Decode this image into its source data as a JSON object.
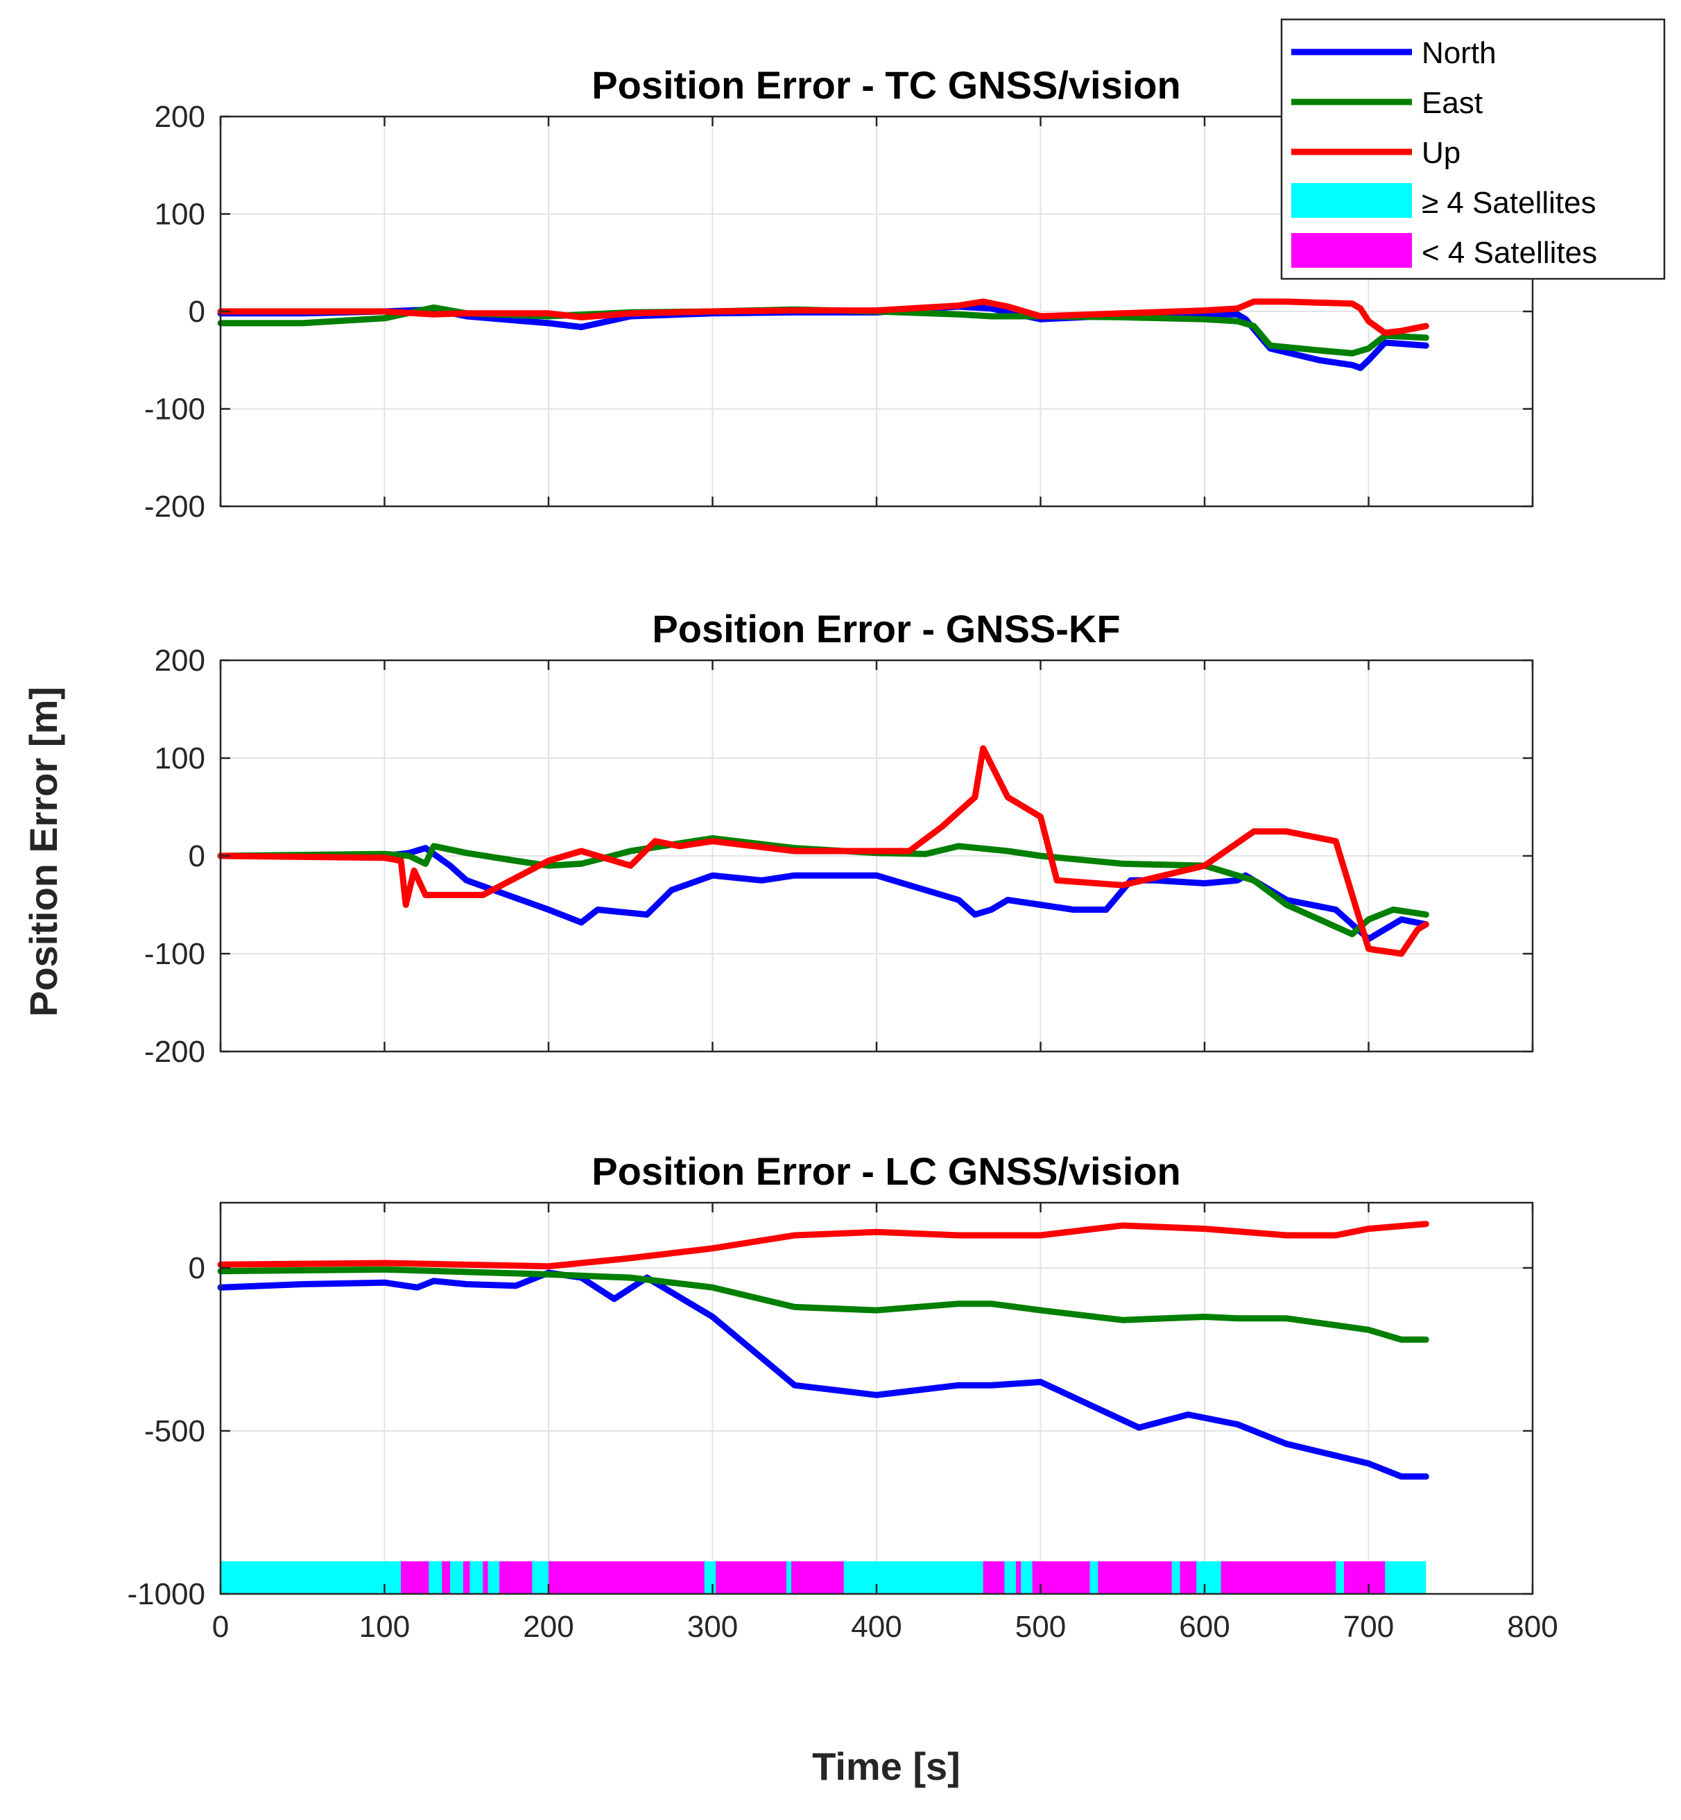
{
  "chart_data": [
    {
      "type": "line",
      "title": "Position Error - TC GNSS/vision",
      "xlim": [
        0,
        800
      ],
      "ylim": [
        -200,
        200
      ],
      "yticks": [
        200,
        100,
        0,
        -100,
        -200
      ],
      "yticklabels": [
        "200",
        "100",
        "0",
        "-100",
        "-200"
      ],
      "xticks": [
        0,
        100,
        200,
        300,
        400,
        500,
        600,
        700,
        800
      ],
      "show_xticklabels": false,
      "grid": true,
      "series": [
        {
          "name": "North",
          "color": "#0000ff",
          "x": [
            0,
            50,
            100,
            130,
            150,
            200,
            220,
            250,
            300,
            350,
            400,
            450,
            470,
            500,
            550,
            600,
            620,
            625,
            640,
            670,
            690,
            695,
            700,
            710,
            735
          ],
          "y": [
            -2,
            -2,
            0,
            2,
            -5,
            -12,
            -16,
            -5,
            -2,
            -1,
            -1,
            5,
            3,
            -8,
            -4,
            -3,
            -3,
            -8,
            -38,
            -50,
            -55,
            -58,
            -50,
            -32,
            -35
          ]
        },
        {
          "name": "East",
          "color": "#007f00",
          "x": [
            0,
            50,
            100,
            130,
            150,
            200,
            250,
            300,
            350,
            400,
            450,
            470,
            500,
            550,
            600,
            620,
            630,
            640,
            670,
            690,
            700,
            710,
            735
          ],
          "y": [
            -12,
            -12,
            -7,
            4,
            -2,
            -5,
            -1,
            0,
            2,
            0,
            -3,
            -5,
            -5,
            -6,
            -8,
            -10,
            -15,
            -35,
            -40,
            -43,
            -38,
            -25,
            -27
          ]
        },
        {
          "name": "Up",
          "color": "#ff0000",
          "x": [
            0,
            50,
            100,
            130,
            150,
            200,
            220,
            250,
            300,
            350,
            400,
            450,
            465,
            480,
            500,
            550,
            600,
            620,
            630,
            650,
            690,
            695,
            700,
            710,
            720,
            735
          ],
          "y": [
            0,
            0,
            0,
            -3,
            -2,
            -2,
            -6,
            -2,
            0,
            1,
            1,
            6,
            10,
            5,
            -5,
            -2,
            1,
            3,
            10,
            10,
            8,
            3,
            -10,
            -22,
            -20,
            -15
          ]
        }
      ]
    },
    {
      "type": "line",
      "title": "Position Error - GNSS-KF",
      "ylabel": "Position Error [m]",
      "xlim": [
        0,
        800
      ],
      "ylim": [
        -200,
        200
      ],
      "yticks": [
        200,
        100,
        0,
        -100,
        -200
      ],
      "yticklabels": [
        "200",
        "100",
        "0",
        "-100",
        "-200"
      ],
      "xticks": [
        0,
        100,
        200,
        300,
        400,
        500,
        600,
        700,
        800
      ],
      "show_xticklabels": false,
      "grid": true,
      "series": [
        {
          "name": "North",
          "color": "#0000ff",
          "x": [
            0,
            100,
            115,
            125,
            140,
            150,
            200,
            220,
            230,
            260,
            275,
            300,
            330,
            350,
            400,
            450,
            460,
            470,
            480,
            500,
            520,
            540,
            555,
            570,
            600,
            620,
            625,
            635,
            650,
            680,
            690,
            700,
            720,
            735
          ],
          "y": [
            0,
            0,
            3,
            8,
            -10,
            -25,
            -55,
            -68,
            -55,
            -60,
            -35,
            -20,
            -25,
            -20,
            -20,
            -45,
            -60,
            -55,
            -45,
            -50,
            -55,
            -55,
            -25,
            -25,
            -28,
            -25,
            -20,
            -30,
            -45,
            -55,
            -70,
            -85,
            -65,
            -70
          ]
        },
        {
          "name": "East",
          "color": "#007f00",
          "x": [
            0,
            100,
            115,
            125,
            130,
            150,
            180,
            200,
            220,
            250,
            300,
            350,
            400,
            430,
            450,
            480,
            500,
            550,
            600,
            630,
            650,
            690,
            700,
            715,
            735
          ],
          "y": [
            0,
            2,
            0,
            -8,
            10,
            3,
            -5,
            -10,
            -8,
            5,
            18,
            8,
            3,
            2,
            10,
            5,
            0,
            -8,
            -10,
            -25,
            -50,
            -80,
            -65,
            -55,
            -60
          ]
        },
        {
          "name": "Up",
          "color": "#ff0000",
          "x": [
            0,
            100,
            110,
            113,
            118,
            125,
            135,
            160,
            200,
            220,
            250,
            265,
            280,
            300,
            350,
            400,
            420,
            440,
            460,
            465,
            480,
            500,
            510,
            550,
            600,
            630,
            650,
            680,
            690,
            700,
            720,
            730,
            735
          ],
          "y": [
            0,
            -2,
            -5,
            -50,
            -15,
            -40,
            -40,
            -40,
            -5,
            5,
            -10,
            15,
            10,
            15,
            5,
            5,
            5,
            30,
            60,
            110,
            60,
            40,
            -25,
            -30,
            -10,
            25,
            25,
            15,
            -40,
            -95,
            -100,
            -75,
            -70
          ]
        }
      ]
    },
    {
      "type": "line",
      "title": "Position Error - LC GNSS/vision",
      "xlabel": "Time [s]",
      "xlim": [
        0,
        800
      ],
      "ylim": [
        -1000,
        200
      ],
      "yticks": [
        0,
        -500,
        -1000
      ],
      "yticklabels": [
        "0",
        "-500",
        "-1000"
      ],
      "xticks": [
        0,
        100,
        200,
        300,
        400,
        500,
        600,
        700,
        800
      ],
      "xticklabels": [
        "0",
        "100",
        "200",
        "300",
        "400",
        "500",
        "600",
        "700",
        "800"
      ],
      "grid": true,
      "series": [
        {
          "name": "North",
          "color": "#0000ff",
          "x": [
            0,
            50,
            100,
            120,
            130,
            150,
            180,
            200,
            220,
            240,
            260,
            300,
            350,
            400,
            450,
            470,
            500,
            530,
            560,
            590,
            620,
            650,
            700,
            720,
            735
          ],
          "y": [
            -60,
            -50,
            -45,
            -60,
            -40,
            -50,
            -55,
            -15,
            -30,
            -95,
            -30,
            -150,
            -360,
            -390,
            -360,
            -360,
            -350,
            -420,
            -490,
            -450,
            -480,
            -540,
            -600,
            -640,
            -640
          ]
        },
        {
          "name": "East",
          "color": "#007f00",
          "x": [
            0,
            100,
            200,
            250,
            300,
            350,
            400,
            450,
            470,
            500,
            550,
            600,
            620,
            650,
            700,
            720,
            735
          ],
          "y": [
            -10,
            -5,
            -20,
            -30,
            -60,
            -120,
            -130,
            -110,
            -110,
            -130,
            -160,
            -150,
            -155,
            -155,
            -190,
            -220,
            -220
          ]
        },
        {
          "name": "Up",
          "color": "#ff0000",
          "x": [
            0,
            100,
            200,
            250,
            300,
            350,
            400,
            450,
            500,
            550,
            600,
            650,
            680,
            700,
            735
          ],
          "y": [
            10,
            15,
            5,
            30,
            60,
            100,
            110,
            100,
            100,
            130,
            120,
            100,
            100,
            120,
            135
          ]
        }
      ],
      "satellite_band": {
        "y_range": [
          -1000,
          -900
        ],
        "x_range": [
          0,
          735
        ],
        "base_label": "≥ 4 Satellites",
        "magenta_intervals": [
          [
            110,
            127
          ],
          [
            135,
            140
          ],
          [
            148,
            152
          ],
          [
            160,
            163
          ],
          [
            170,
            190
          ],
          [
            200,
            295
          ],
          [
            302,
            345
          ],
          [
            348,
            380
          ],
          [
            465,
            478
          ],
          [
            485,
            488
          ],
          [
            495,
            530
          ],
          [
            535,
            580
          ],
          [
            585,
            595
          ],
          [
            610,
            680
          ],
          [
            685,
            710
          ]
        ]
      }
    }
  ],
  "legend": {
    "position": "top-right",
    "entries": [
      {
        "label": "North",
        "color": "#0000ff",
        "kind": "line"
      },
      {
        "label": "East",
        "color": "#007f00",
        "kind": "line"
      },
      {
        "label": "Up",
        "color": "#ff0000",
        "kind": "line"
      },
      {
        "label": "≥ 4 Satellites",
        "color": "#00ffff",
        "kind": "patch"
      },
      {
        "label": "< 4 Satellites",
        "color": "#ff00ff",
        "kind": "patch"
      }
    ]
  }
}
